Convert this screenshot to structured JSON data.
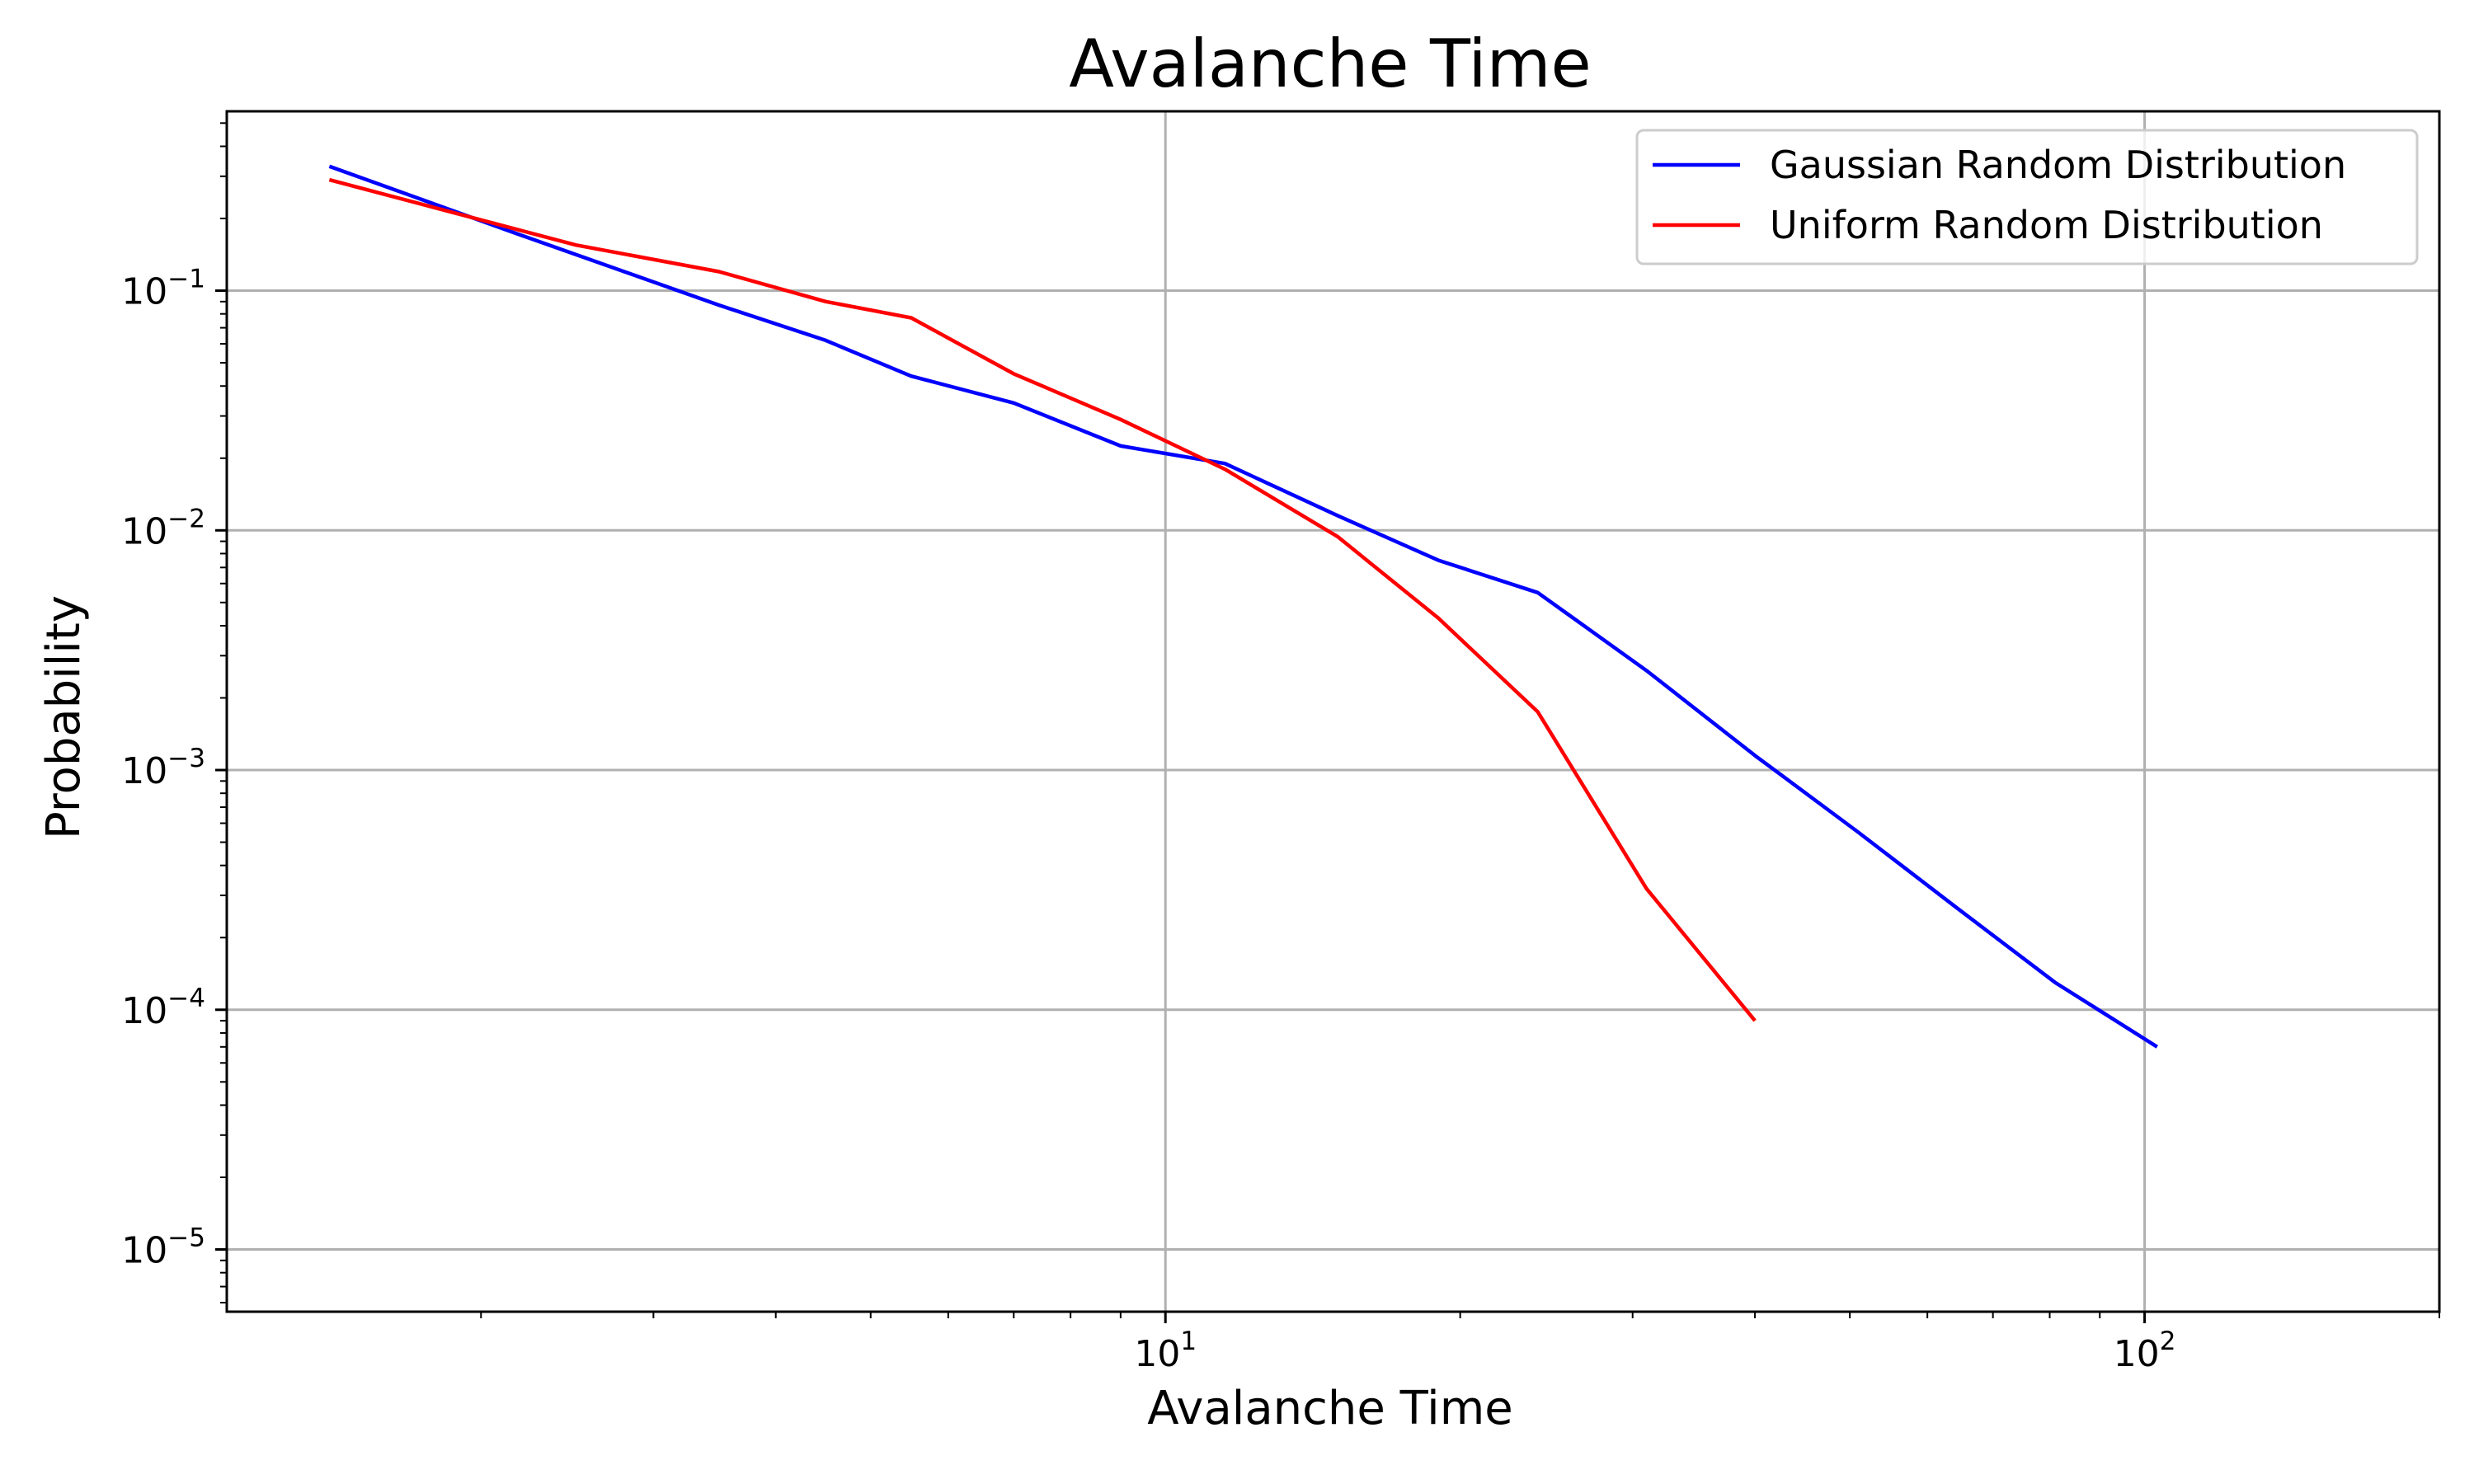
{
  "chart_data": {
    "type": "line",
    "title": "Avalanche Time",
    "xlabel": "Avalanche Time",
    "ylabel": "Probability",
    "xscale": "log",
    "yscale": "log",
    "xlim": [
      1.1,
      200
    ],
    "ylim": [
      5.5e-06,
      0.56
    ],
    "grid": true,
    "legend_position": "top-right",
    "x_ticks": [
      {
        "base": "10",
        "exp": "1",
        "value": 10
      },
      {
        "base": "10",
        "exp": "2",
        "value": 100
      }
    ],
    "y_ticks": [
      {
        "base": "10",
        "exp": "−1",
        "value": 0.1
      },
      {
        "base": "10",
        "exp": "−2",
        "value": 0.01
      },
      {
        "base": "10",
        "exp": "−3",
        "value": 0.001
      },
      {
        "base": "10",
        "exp": "−4",
        "value": 0.0001
      },
      {
        "base": "10",
        "exp": "−5",
        "value": 1e-05
      }
    ],
    "series": [
      {
        "name": "Gaussian Random Distribution",
        "color": "#0000ff",
        "x": [
          1.4,
          2.2,
          3.5,
          4.5,
          5.5,
          7.0,
          9.0,
          11.5,
          15.0,
          19.0,
          24.0,
          31.0,
          40.0,
          51.0,
          64.0,
          81.0,
          103.0
        ],
        "y": [
          0.33,
          0.17,
          0.087,
          0.062,
          0.044,
          0.034,
          0.0225,
          0.019,
          0.0115,
          0.0075,
          0.0055,
          0.0026,
          0.00115,
          0.00055,
          0.00027,
          0.00013,
          7e-05
        ]
      },
      {
        "name": "Uniform Random Distribution",
        "color": "#ff0000",
        "x": [
          1.4,
          2.5,
          3.5,
          4.5,
          5.5,
          7.0,
          9.0,
          11.5,
          15.0,
          19.0,
          24.0,
          31.0,
          40.0
        ],
        "y": [
          0.29,
          0.155,
          0.12,
          0.09,
          0.077,
          0.045,
          0.029,
          0.018,
          0.0094,
          0.0043,
          0.00175,
          0.00032,
          9e-05
        ]
      }
    ]
  }
}
